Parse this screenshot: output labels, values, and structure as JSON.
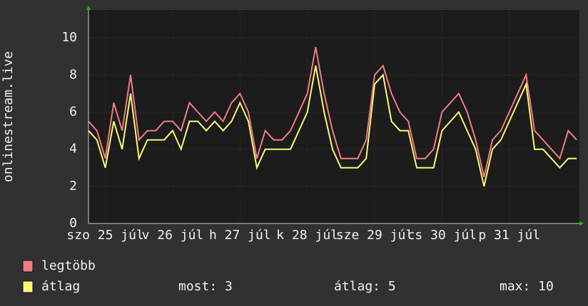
{
  "chart_data": {
    "type": "line",
    "y_label": "onlinestream.live",
    "x": [
      0,
      3,
      6,
      9,
      12,
      15,
      18,
      21,
      24,
      27,
      30,
      33,
      36,
      39,
      42,
      45,
      48,
      51,
      54,
      57,
      60,
      63,
      66,
      69,
      72,
      75,
      78,
      81,
      84,
      87,
      90,
      93,
      96,
      99,
      102,
      105,
      108,
      111,
      114,
      117,
      120,
      123,
      126,
      129,
      132,
      135,
      138,
      141,
      144,
      147,
      150,
      153,
      156,
      159,
      162,
      165,
      168,
      171,
      174
    ],
    "series": [
      {
        "name": "legtöbb",
        "color": "#f07c84",
        "values": [
          5.5,
          5,
          3.5,
          6.5,
          5,
          8,
          4.5,
          5,
          5,
          5.5,
          5.5,
          5,
          6.5,
          6,
          5.5,
          6,
          5.5,
          6.5,
          7,
          6,
          3.5,
          5,
          4.5,
          4.5,
          5,
          6,
          7,
          9.5,
          7,
          5,
          3.5,
          3.5,
          3.5,
          4.5,
          8,
          8.5,
          7,
          6,
          5.5,
          3.5,
          3.5,
          4,
          6,
          6.5,
          7,
          6,
          4.5,
          2.5,
          4.5,
          5,
          6,
          7,
          8,
          5,
          4.5,
          4,
          3.5,
          5,
          4.5
        ]
      },
      {
        "name": "átlag",
        "color": "#f8f878",
        "values": [
          5,
          4.5,
          3,
          5.5,
          4,
          7,
          3.5,
          4.5,
          4.5,
          4.5,
          5,
          4,
          5.5,
          5.5,
          5,
          5.5,
          5,
          5.5,
          6.5,
          5.5,
          3,
          4,
          4,
          4,
          4,
          5,
          6,
          8.5,
          6,
          4,
          3,
          3,
          3,
          3.5,
          7.5,
          8,
          5.5,
          5,
          5,
          3,
          3,
          3,
          5,
          5.5,
          6,
          5,
          4,
          2,
          4,
          4.5,
          5.5,
          6.5,
          7.5,
          4,
          4,
          3.5,
          3,
          3.5,
          3.5
        ]
      }
    ],
    "xlim": [
      0,
      175
    ],
    "xticks": [
      {
        "value": 6,
        "label": "szo 25 júl"
      },
      {
        "value": 30,
        "label": "v 26 júl"
      },
      {
        "value": 54,
        "label": "h 27 júl"
      },
      {
        "value": 78,
        "label": "k 28 júl"
      },
      {
        "value": 102,
        "label": "sze 29 júl"
      },
      {
        "value": 126,
        "label": "cs 30 júl"
      },
      {
        "value": 150,
        "label": "p 31 júl"
      }
    ],
    "ylim": [
      0,
      11.5
    ],
    "yticks": [
      0,
      2,
      4,
      6,
      8,
      10
    ],
    "grid": true,
    "stats": [
      "most: 3",
      "átlag: 5",
      "max: 10"
    ]
  }
}
